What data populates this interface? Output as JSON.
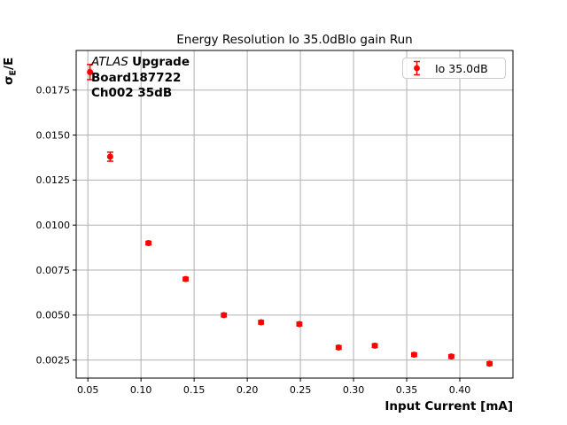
{
  "title": "Energy Resolution Io 35.0dBlo gain Run",
  "ylabel_parts": {
    "sigma": "σ",
    "sub": "E",
    "rest": "/E"
  },
  "annotation": {
    "atlas": "ATLAS",
    "upgrade": "Upgrade",
    "line2": "Board187722",
    "line3": "Ch002 35dB"
  },
  "chart_data": {
    "type": "scatter",
    "title": "Energy Resolution Io 35.0dBlo gain Run",
    "xlabel": "Input Current [mA]",
    "ylabel": "σE/E",
    "xlim": [
      0.039,
      0.45
    ],
    "ylim": [
      0.0015,
      0.0197
    ],
    "grid": true,
    "legend_position": "upper right",
    "colors": {
      "series": "#ff0000",
      "grid": "#b0b0b0",
      "spine": "#000000",
      "legend_border": "#cccccc"
    },
    "xticks": [
      {
        "value": 0.05,
        "label": "0.05"
      },
      {
        "value": 0.1,
        "label": "0.10"
      },
      {
        "value": 0.15,
        "label": "0.15"
      },
      {
        "value": 0.2,
        "label": "0.20"
      },
      {
        "value": 0.25,
        "label": "0.25"
      },
      {
        "value": 0.3,
        "label": "0.30"
      },
      {
        "value": 0.35,
        "label": "0.35"
      },
      {
        "value": 0.4,
        "label": "0.40"
      }
    ],
    "yticks": [
      {
        "value": 0.0025,
        "label": "0.0025"
      },
      {
        "value": 0.005,
        "label": "0.0050"
      },
      {
        "value": 0.0075,
        "label": "0.0075"
      },
      {
        "value": 0.01,
        "label": "0.0100"
      },
      {
        "value": 0.0125,
        "label": "0.0125"
      },
      {
        "value": 0.015,
        "label": "0.0150"
      },
      {
        "value": 0.0175,
        "label": "0.0175"
      }
    ],
    "series": [
      {
        "name": "Io 35.0dB",
        "marker": "circle-with-errorbar",
        "x": [
          0.052,
          0.071,
          0.107,
          0.142,
          0.178,
          0.213,
          0.249,
          0.286,
          0.32,
          0.357,
          0.392,
          0.428
        ],
        "y": [
          0.0185,
          0.0138,
          0.009,
          0.007,
          0.005,
          0.0046,
          0.0045,
          0.0032,
          0.0033,
          0.0028,
          0.0027,
          0.0023
        ],
        "yerr": [
          0.00042,
          0.00025,
          0.0001,
          0.0001,
          0.0001,
          0.0001,
          0.0001,
          0.0001,
          0.0001,
          0.0001,
          0.0001,
          0.0001
        ]
      }
    ]
  }
}
